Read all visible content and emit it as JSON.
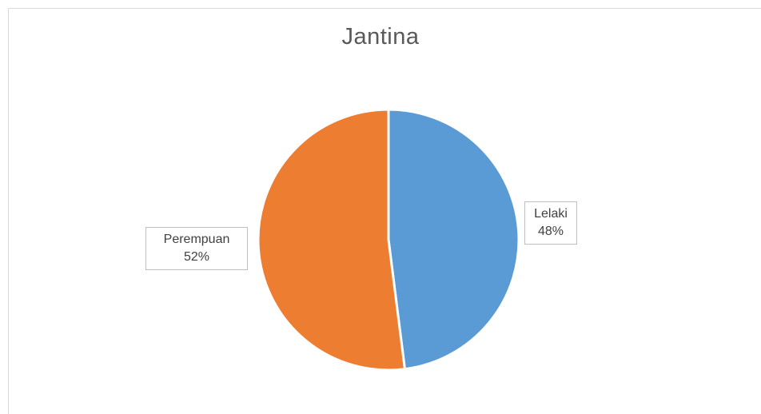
{
  "chart_data": {
    "type": "pie",
    "title": "Jantina",
    "categories": [
      "Lelaki",
      "Perempuan"
    ],
    "values": [
      48,
      52
    ],
    "value_labels": [
      "48%",
      "52%"
    ],
    "colors": [
      "#5b9bd5",
      "#ed7d31"
    ],
    "legend": "none",
    "data_labels": "outside-boxed"
  }
}
